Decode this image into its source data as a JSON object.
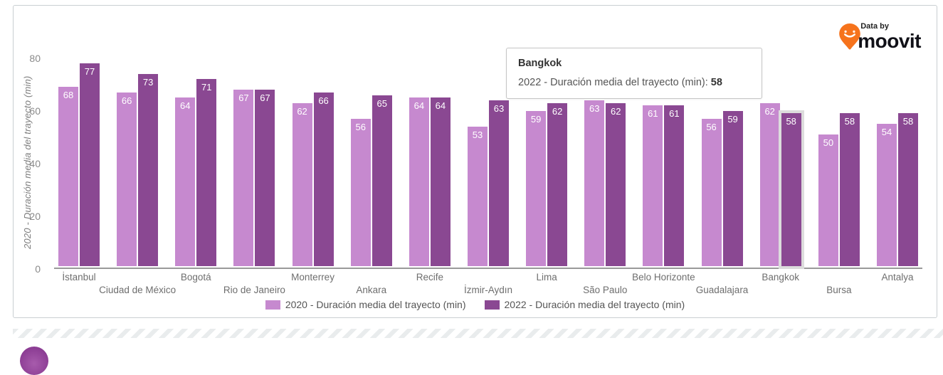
{
  "brand": {
    "data_by": "Data by",
    "name": "moovit",
    "pin_color": "#F6731C"
  },
  "chart_data": {
    "type": "bar",
    "categories": [
      "İstanbul",
      "Ciudad de México",
      "Bogotá",
      "Rio de Janeiro",
      "Monterrey",
      "Ankara",
      "Recife",
      "İzmir-Aydın",
      "Lima",
      "São Paulo",
      "Belo Horizonte",
      "Guadalajara",
      "Bangkok",
      "Bursa",
      "Antalya"
    ],
    "series": [
      {
        "name": "2020 - Duración media del trayecto (min)",
        "color": "#C689CF",
        "values": [
          68,
          66,
          64,
          67,
          62,
          56,
          64,
          53,
          59,
          63,
          61,
          56,
          62,
          50,
          54
        ]
      },
      {
        "name": "2022 - Duración media del trayecto (min)",
        "color": "#8A4892",
        "values": [
          77,
          73,
          71,
          67,
          66,
          65,
          64,
          63,
          62,
          62,
          61,
          59,
          58,
          58,
          58
        ]
      }
    ],
    "ylabel": "2020 - Duración media del trayecto (min)",
    "yticks": [
      0,
      20,
      40,
      60,
      80
    ],
    "ylim": [
      0,
      88
    ],
    "grid": false,
    "legend_position": "bottom",
    "value_labels": "inside-top",
    "highlight": {
      "category_index": 12,
      "series_index": 1
    }
  },
  "tooltip": {
    "title": "Bangkok",
    "line_label": "2022 - Duración media del trayecto (min): ",
    "line_value": "58"
  },
  "colors": {
    "axis_line": "#9A9A9A",
    "tick_text": "#8A8A8A",
    "category_text": "#6E6E6E",
    "card_border": "#C9CFD2",
    "highlight_halo": "#DCDCDC",
    "avatar_purple": "#8C3D94"
  }
}
